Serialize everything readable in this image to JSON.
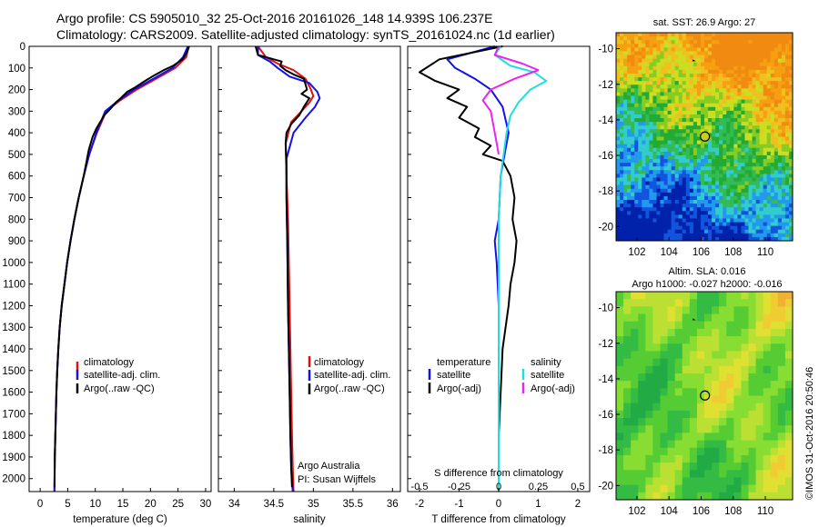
{
  "header": {
    "line1": "Argo profile: CS 5905010_32 25-Oct-2016 20161026_148 14.939S 106.237E",
    "line2": "Climatology: CARS2009. Satellite-adjusted climatology: synTS_20161024.nc (1d earlier)"
  },
  "colors": {
    "climatology": "#dd1111",
    "satellite": "#1111ee",
    "argo": "#000000",
    "sal_satellite": "#22dddd",
    "sal_argo": "#ee22ee"
  },
  "chart_data": [
    {
      "id": "temperature",
      "type": "line",
      "xlabel": "temperature (deg C)",
      "ylabel": "",
      "xlim": [
        -2,
        31
      ],
      "ylim": [
        2060,
        0
      ],
      "xticks": [
        0,
        5,
        10,
        15,
        20,
        25,
        30
      ],
      "yticks": [
        0,
        100,
        200,
        300,
        400,
        500,
        600,
        700,
        800,
        900,
        1000,
        1100,
        1200,
        1300,
        1400,
        1500,
        1600,
        1700,
        1800,
        1900,
        2000
      ],
      "legend": [
        "climatology",
        "satellite-adj. clim.",
        "Argo(..raw -QC)"
      ],
      "series": [
        {
          "name": "climatology",
          "color": "#dd1111",
          "x": [
            26.9,
            26.5,
            24.5,
            21,
            17.5,
            14.5,
            12,
            10.3,
            8.9,
            7.9,
            7,
            6.2,
            5.5,
            4.9,
            4.4,
            3.9,
            3.55,
            3.3,
            3.1,
            2.95,
            2.85,
            2.75,
            2.65,
            2.58
          ],
          "y": [
            0,
            50,
            100,
            150,
            200,
            250,
            300,
            400,
            500,
            600,
            700,
            800,
            900,
            1000,
            1100,
            1200,
            1300,
            1400,
            1500,
            1600,
            1700,
            1800,
            1900,
            2060
          ]
        },
        {
          "name": "satellite-adj. clim.",
          "color": "#1111ee",
          "x": [
            26.8,
            25.9,
            24,
            20.5,
            17,
            14.2,
            11.8,
            10.2,
            8.9,
            7.9,
            7,
            6.2,
            5.5,
            4.9,
            4.4,
            3.9,
            3.55,
            3.3,
            3.1,
            2.95,
            2.85,
            2.75,
            2.65,
            2.58
          ],
          "y": [
            0,
            50,
            100,
            150,
            200,
            250,
            300,
            400,
            500,
            600,
            700,
            800,
            900,
            1000,
            1100,
            1200,
            1300,
            1400,
            1500,
            1600,
            1700,
            1800,
            1900,
            2060
          ]
        },
        {
          "name": "Argo(..raw -QC)",
          "color": "#000000",
          "x": [
            27,
            26.6,
            25.8,
            24.1,
            22.4,
            20.3,
            19,
            17.2,
            15.8,
            14.6,
            13.7,
            12.7,
            11.6,
            10.9,
            10.2,
            9.5,
            8.8,
            7.9,
            7,
            6.2,
            5.5,
            4.9,
            4.4,
            3.9,
            3.55,
            3.3,
            3.1,
            2.95,
            2.85,
            2.75,
            2.65,
            2.6
          ],
          "y": [
            0,
            30,
            60,
            90,
            110,
            140,
            160,
            190,
            210,
            240,
            260,
            290,
            320,
            350,
            380,
            420,
            480,
            600,
            700,
            800,
            900,
            1000,
            1100,
            1200,
            1300,
            1400,
            1500,
            1600,
            1700,
            1800,
            1900,
            2040
          ]
        }
      ]
    },
    {
      "id": "salinity",
      "type": "line",
      "xlabel": "salinity",
      "xlim": [
        33.8,
        36.1
      ],
      "ylim": [
        2060,
        0
      ],
      "xticks": [
        34,
        34.5,
        35,
        35.5,
        36
      ],
      "legend": [
        "climatology",
        "satellite-adj. clim.",
        "Argo(..raw -QC)"
      ],
      "annotations": [
        "Argo Australia",
        "PI: Susan Wijffels"
      ],
      "series": [
        {
          "name": "climatology",
          "color": "#dd1111",
          "x": [
            34.3,
            34.4,
            34.55,
            34.75,
            34.9,
            34.97,
            35,
            34.95,
            34.85,
            34.72,
            34.65,
            34.66,
            34.68,
            34.69,
            34.7,
            34.71,
            34.72,
            34.73,
            34.74,
            34.75
          ],
          "y": [
            0,
            50,
            80,
            110,
            150,
            200,
            230,
            260,
            300,
            350,
            450,
            600,
            800,
            1000,
            1200,
            1400,
            1600,
            1800,
            1950,
            2060
          ]
        },
        {
          "name": "satellite-adj. clim.",
          "color": "#1111ee",
          "x": [
            34.3,
            34.3,
            34.45,
            34.55,
            34.7,
            34.95,
            35.05,
            35.08,
            35.02,
            34.9,
            34.75,
            34.66,
            34.66,
            34.67,
            34.68,
            34.69,
            34.7,
            34.71,
            34.72,
            34.74
          ],
          "y": [
            0,
            40,
            70,
            100,
            140,
            170,
            210,
            240,
            280,
            330,
            400,
            520,
            700,
            900,
            1200,
            1400,
            1600,
            1800,
            1950,
            2060
          ]
        },
        {
          "name": "Argo(..raw -QC)",
          "color": "#000000",
          "x": [
            34.27,
            34.3,
            34.5,
            34.6,
            34.58,
            34.65,
            34.75,
            34.88,
            34.92,
            34.85,
            34.95,
            34.88,
            34.82,
            34.72,
            34.66,
            34.65,
            34.66,
            34.66,
            34.67,
            34.68,
            34.69,
            34.7,
            34.71,
            34.72,
            34.73
          ],
          "y": [
            0,
            40,
            60,
            70,
            90,
            110,
            130,
            150,
            200,
            220,
            240,
            280,
            320,
            360,
            400,
            450,
            550,
            700,
            900,
            1200,
            1400,
            1600,
            1800,
            1950,
            2040
          ]
        }
      ]
    },
    {
      "id": "difference",
      "type": "line",
      "xlabel": "T difference from climatology",
      "x2label": "S difference from climatology",
      "xlim": [
        -2.3,
        2.3
      ],
      "ylim": [
        2060,
        0
      ],
      "xticks": [
        -2,
        -1,
        0,
        1,
        2
      ],
      "x2ticks": [
        "-0.5",
        "-0.25",
        "0",
        "0.25",
        "0.5"
      ],
      "legend_temperature": [
        "temperature",
        "satellite",
        "Argo(-adj)"
      ],
      "legend_salinity": [
        "salinity",
        "satellite",
        "Argo(-adj)"
      ],
      "series": [
        {
          "name": "temperature satellite",
          "color": "#1111ee",
          "x": [
            -0.1,
            -1.3,
            -1.1,
            -0.6,
            -0.2,
            0.1,
            0.25,
            0.15,
            0.05,
            0.0,
            -0.1,
            -0.05,
            0.0,
            0.0,
            0.0,
            0.0,
            0.0,
            0.0
          ],
          "y": [
            0,
            60,
            100,
            150,
            200,
            280,
            400,
            500,
            600,
            800,
            900,
            1000,
            1200,
            1400,
            1600,
            1800,
            1950,
            2060
          ]
        },
        {
          "name": "temperature Argo(-adj)",
          "color": "#000000",
          "x": [
            0.1,
            -1.5,
            -2.0,
            -1.6,
            -1.0,
            -1.3,
            -0.8,
            -1.0,
            -0.5,
            -0.6,
            -0.2,
            -0.4,
            0.1,
            0.3,
            0.4,
            0.35,
            0.45,
            0.4,
            0.3,
            0.25,
            0.1,
            0.05,
            0.0,
            0.0
          ],
          "y": [
            0,
            60,
            120,
            160,
            200,
            240,
            280,
            330,
            380,
            420,
            460,
            500,
            530,
            600,
            700,
            800,
            900,
            1000,
            1100,
            1200,
            1400,
            1600,
            1800,
            2040
          ]
        },
        {
          "name": "salinity satellite",
          "color": "#22dddd",
          "x": [
            0.05,
            -0.1,
            0.3,
            0.9,
            1.2,
            0.8,
            0.5,
            0.3,
            0.2,
            0.05,
            0.0,
            0.0,
            0.0,
            0.0,
            0.0
          ],
          "y": [
            0,
            40,
            90,
            120,
            160,
            200,
            260,
            320,
            400,
            600,
            800,
            1000,
            1400,
            1800,
            2060
          ]
        },
        {
          "name": "salinity Argo(-adj)",
          "color": "#ee22ee",
          "x": [
            0.0,
            -0.1,
            0.6,
            1.0,
            0.4,
            -0.2,
            -0.4,
            -0.2,
            -0.1,
            0.0
          ],
          "y": [
            0,
            40,
            80,
            110,
            150,
            200,
            250,
            300,
            400,
            500
          ]
        }
      ]
    },
    {
      "id": "sst-map",
      "type": "heatmap",
      "title": "sat. SST: 26.9 Argo: 27",
      "xticks": [
        102,
        104,
        106,
        108,
        110
      ],
      "yticks": [
        -10,
        -12,
        -14,
        -16,
        -18,
        -20
      ],
      "xlim": [
        100.7,
        111.7
      ],
      "ylim": [
        -20.8,
        -9.1
      ],
      "marker": {
        "lon": 106.237,
        "lat": -14.939
      }
    },
    {
      "id": "sla-map",
      "type": "heatmap",
      "title": "Altim. SLA: 0.016",
      "subtitle": "Argo h1000: -0.027 h2000: -0.016",
      "xticks": [
        102,
        104,
        106,
        108,
        110
      ],
      "yticks": [
        -10,
        -12,
        -14,
        -16,
        -18,
        -20
      ],
      "xlim": [
        100.7,
        111.7
      ],
      "ylim": [
        -20.8,
        -9.1
      ],
      "marker": {
        "lon": 106.237,
        "lat": -14.939
      }
    }
  ],
  "credit": "©IMOS 31-Oct-2016 20:50:46"
}
